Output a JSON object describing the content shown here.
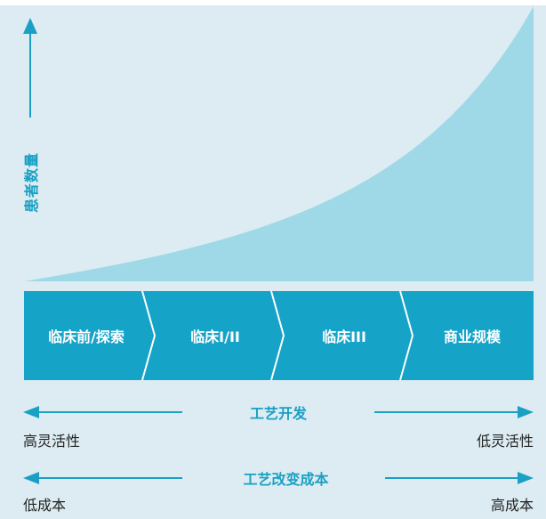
{
  "diagram": {
    "y_axis_label": "患者数量",
    "stages": [
      {
        "label": "临床前/探索"
      },
      {
        "label": "临床I/II"
      },
      {
        "label": "临床III"
      },
      {
        "label": "商业规模"
      }
    ],
    "process_development": {
      "title": "工艺开发",
      "left": "高灵活性",
      "right": "低灵活性"
    },
    "process_change_cost": {
      "title": "工艺改变成本",
      "left": "低成本",
      "right": "高成本"
    }
  },
  "colors": {
    "background": "#dcecf2",
    "curve_fill": "#9fd9e7",
    "accent": "#1aa0c4",
    "stage_fill": "#16a3c8",
    "divider": "#ffffff",
    "text": "#222222"
  }
}
